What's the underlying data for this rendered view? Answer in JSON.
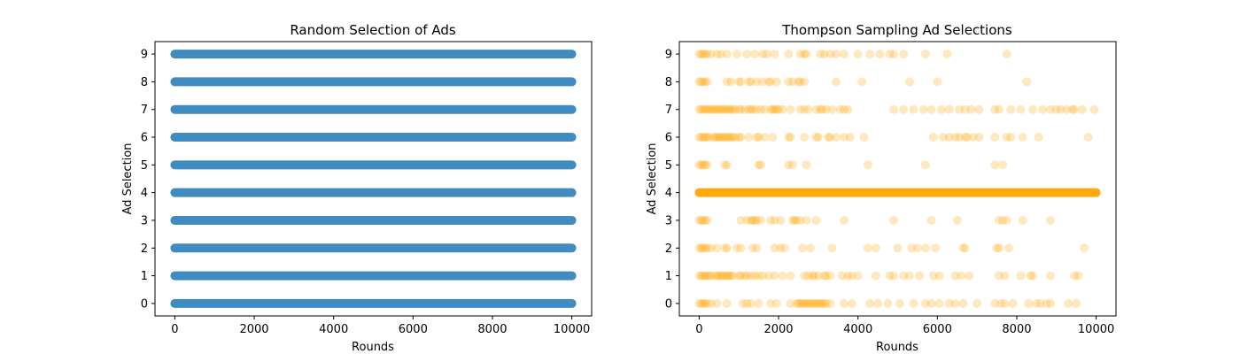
{
  "chart_data": [
    {
      "type": "scatter",
      "title": "Random Selection of Ads",
      "xlabel": "Rounds",
      "ylabel": "Ad Selection",
      "xlim": [
        -500,
        10500
      ],
      "ylim": [
        -0.45,
        9.45
      ],
      "xticks": [
        0,
        2000,
        4000,
        6000,
        8000,
        10000
      ],
      "yticks": [
        0,
        1,
        2,
        3,
        4,
        5,
        6,
        7,
        8,
        9
      ],
      "grid": false,
      "color": "#1f77b4",
      "alpha": 0.5,
      "description_of_points": "dense uniform points for every ad 0-9 across rounds 0-10000",
      "series": [
        {
          "ad": 0,
          "segments": [
            [
              0,
              10000
            ]
          ]
        },
        {
          "ad": 1,
          "segments": [
            [
              0,
              10000
            ]
          ]
        },
        {
          "ad": 2,
          "segments": [
            [
              0,
              10000
            ]
          ]
        },
        {
          "ad": 3,
          "segments": [
            [
              0,
              10000
            ]
          ]
        },
        {
          "ad": 4,
          "segments": [
            [
              0,
              10000
            ]
          ]
        },
        {
          "ad": 5,
          "segments": [
            [
              0,
              10000
            ]
          ]
        },
        {
          "ad": 6,
          "segments": [
            [
              0,
              10000
            ]
          ]
        },
        {
          "ad": 7,
          "segments": [
            [
              0,
              10000
            ]
          ]
        },
        {
          "ad": 8,
          "segments": [
            [
              0,
              10000
            ]
          ]
        },
        {
          "ad": 9,
          "segments": [
            [
              0,
              10000
            ]
          ]
        }
      ]
    },
    {
      "type": "scatter",
      "title": "Thompson Sampling Ad Selections",
      "xlabel": "Rounds",
      "ylabel": "Ad Selection",
      "xlim": [
        -500,
        10500
      ],
      "ylim": [
        -0.45,
        9.45
      ],
      "xticks": [
        0,
        2000,
        4000,
        6000,
        8000,
        10000
      ],
      "yticks": [
        0,
        1,
        2,
        3,
        4,
        5,
        6,
        7,
        8,
        9
      ],
      "grid": false,
      "color": "#ffa500",
      "alpha": 0.25,
      "series": [
        {
          "ad": 0,
          "x": [
            0,
            50,
            100,
            150,
            200,
            300,
            450,
            700,
            1100,
            1200,
            1300,
            1500,
            1800,
            1950,
            2300,
            2450,
            2500,
            2550,
            2600,
            2650,
            2700,
            2750,
            2800,
            2850,
            2900,
            2950,
            3000,
            3050,
            3100,
            3150,
            3200,
            3300,
            3650,
            3850,
            4300,
            4500,
            4750,
            5050,
            5400,
            5700,
            5850,
            6050,
            6300,
            6450,
            6650,
            7000,
            7450,
            7600,
            7700,
            7900,
            8300,
            8500,
            8600,
            8750,
            8850,
            9300,
            9500
          ]
        },
        {
          "ad": 1,
          "x": [
            0,
            50,
            100,
            150,
            200,
            250,
            300,
            400,
            450,
            500,
            550,
            600,
            650,
            700,
            750,
            800,
            850,
            1000,
            1050,
            1150,
            1200,
            1300,
            1400,
            1500,
            1600,
            1750,
            1900,
            2100,
            2300,
            2650,
            2750,
            2850,
            2900,
            3000,
            3150,
            3200,
            3300,
            3600,
            3750,
            3850,
            4000,
            4450,
            4800,
            4900,
            5150,
            5300,
            5550,
            5900,
            6050,
            6450,
            6600,
            6800,
            7550,
            7700,
            8100,
            8350,
            8400,
            8850,
            9450,
            9550
          ]
        },
        {
          "ad": 2,
          "x": [
            0,
            50,
            100,
            150,
            200,
            300,
            450,
            650,
            700,
            950,
            1050,
            1350,
            1450,
            1900,
            2050,
            2150,
            2600,
            2800,
            3350,
            4250,
            4450,
            5000,
            5350,
            5500,
            5700,
            5950,
            6650,
            6700,
            7500,
            7550,
            7800,
            9700
          ]
        },
        {
          "ad": 3,
          "x": [
            0,
            50,
            100,
            150,
            200,
            1050,
            1200,
            1300,
            1350,
            1400,
            1450,
            1550,
            1800,
            1900,
            2050,
            2350,
            2400,
            2450,
            2550,
            2700,
            2950,
            3650,
            4900,
            5850,
            6500,
            7550,
            7650,
            7750,
            8150,
            8850
          ]
        },
        {
          "ad": 4,
          "segments": [
            [
              0,
              10000
            ]
          ],
          "extra_x": [
            0,
            10000
          ]
        },
        {
          "ad": 5,
          "x": [
            0,
            50,
            100,
            150,
            200,
            650,
            700,
            1500,
            1550,
            2250,
            2350,
            2700,
            4250,
            5700,
            7450,
            7650
          ]
        },
        {
          "ad": 6,
          "x": [
            0,
            50,
            100,
            150,
            200,
            250,
            350,
            400,
            450,
            500,
            550,
            600,
            650,
            700,
            750,
            800,
            850,
            900,
            1000,
            1050,
            1250,
            1450,
            1500,
            1650,
            1850,
            2250,
            2300,
            2650,
            2950,
            3000,
            3250,
            3300,
            3450,
            3650,
            3800,
            4150,
            5900,
            6150,
            6300,
            6450,
            6550,
            6700,
            6750,
            6900,
            7050,
            7450,
            7750,
            7850,
            8150,
            8550,
            9800
          ]
        },
        {
          "ad": 7,
          "x": [
            0,
            50,
            100,
            150,
            200,
            250,
            300,
            350,
            400,
            450,
            500,
            550,
            600,
            650,
            700,
            750,
            800,
            850,
            900,
            1000,
            1050,
            1150,
            1250,
            1300,
            1350,
            1450,
            1550,
            1650,
            1800,
            1850,
            1900,
            1950,
            2000,
            2100,
            2300,
            2550,
            2650,
            2750,
            2950,
            3050,
            3100,
            3200,
            3350,
            3550,
            3650,
            3750,
            4900,
            5150,
            5400,
            5650,
            5850,
            6100,
            6300,
            6550,
            6700,
            6850,
            7050,
            7450,
            7550,
            7850,
            8100,
            8400,
            8650,
            8850,
            9000,
            9100,
            9250,
            9400,
            9450,
            9650,
            9950
          ]
        },
        {
          "ad": 8,
          "x": [
            0,
            50,
            100,
            150,
            200,
            700,
            800,
            1000,
            1050,
            1250,
            1300,
            1450,
            1600,
            1750,
            1800,
            1950,
            2250,
            2350,
            2500,
            2550,
            2650,
            3450,
            4100,
            5300,
            6000,
            8250
          ]
        },
        {
          "ad": 9,
          "x": [
            0,
            50,
            100,
            150,
            200,
            300,
            450,
            550,
            700,
            950,
            1200,
            1400,
            1600,
            1700,
            1900,
            2250,
            2550,
            2650,
            2700,
            3050,
            3150,
            3300,
            3450,
            3650,
            4000,
            4300,
            4550,
            4800,
            4900,
            5150,
            5700,
            6250,
            7750
          ]
        }
      ]
    }
  ]
}
